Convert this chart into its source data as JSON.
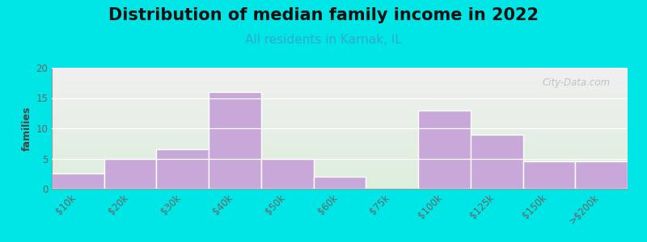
{
  "title": "Distribution of median family income in 2022",
  "subtitle": "All residents in Karnak, IL",
  "ylabel": "families",
  "categories": [
    "$10k",
    "$20k",
    "$30k",
    "$40k",
    "$50k",
    "$60k",
    "$75k",
    "$100k",
    "$125k",
    "$150k",
    ">$200k"
  ],
  "values": [
    2.5,
    5,
    6.5,
    16,
    5,
    2,
    0,
    13,
    9,
    4.5,
    4.5
  ],
  "bar_color": "#c8a8d8",
  "background_outer": "#00e5e5",
  "background_plot_green_top": "#ddeedd",
  "background_plot_white_bottom": "#f0f0f0",
  "ylim": [
    0,
    20
  ],
  "yticks": [
    0,
    5,
    10,
    15,
    20
  ],
  "title_fontsize": 15,
  "subtitle_fontsize": 11,
  "subtitle_color": "#33aacc",
  "ylabel_fontsize": 9,
  "watermark_text": "City-Data.com",
  "watermark_color": "#b0bcc8",
  "tick_label_fontsize": 8.5,
  "tick_label_color": "#666666"
}
